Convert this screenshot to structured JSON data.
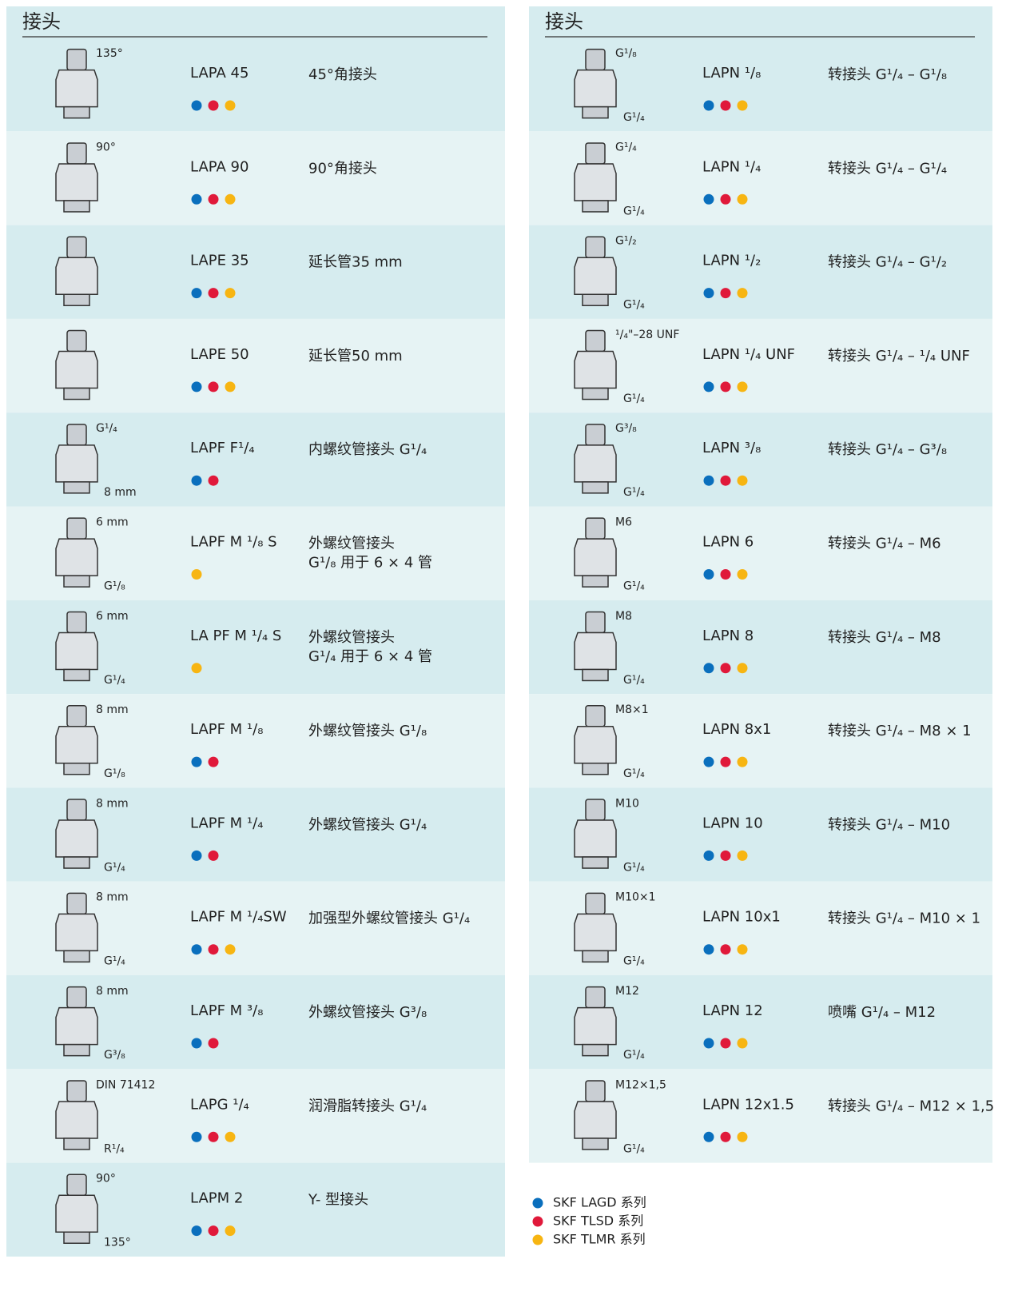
{
  "left": {
    "title": "接头",
    "rows": [
      {
        "name": "LAPA 45",
        "desc": [
          "45°角接头"
        ],
        "dims": [
          "135°"
        ],
        "systems": [
          0,
          1,
          2
        ]
      },
      {
        "name": "LAPA 90",
        "desc": [
          "90°角接头"
        ],
        "dims": [
          "90°"
        ],
        "systems": [
          0,
          1,
          2
        ]
      },
      {
        "name": "LAPE 35",
        "desc": [
          "延长管35 mm"
        ],
        "dims": [],
        "systems": [
          0,
          1,
          2
        ]
      },
      {
        "name": "LAPE 50",
        "desc": [
          "延长管50 mm"
        ],
        "dims": [],
        "systems": [
          0,
          1,
          2
        ]
      },
      {
        "name": "LAPF F¹/₄",
        "desc": [
          "内螺纹管接头 G¹/₄"
        ],
        "dims": [
          "G¹/₄",
          "8 mm"
        ],
        "systems": [
          0,
          1
        ]
      },
      {
        "name": "LAPF M ¹/₈ S",
        "desc": [
          "外螺纹管接头",
          "G¹/₈ 用于 6 × 4 管"
        ],
        "dims": [
          "6 mm",
          "G¹/₈"
        ],
        "systems": [
          2
        ]
      },
      {
        "name": "LA PF M ¹/₄ S",
        "desc": [
          "外螺纹管接头",
          "G¹/₄ 用于 6 × 4 管"
        ],
        "dims": [
          "6 mm",
          "G¹/₄"
        ],
        "systems": [
          2
        ]
      },
      {
        "name": "LAPF M ¹/₈",
        "desc": [
          "外螺纹管接头 G¹/₈"
        ],
        "dims": [
          "8 mm",
          "G¹/₈"
        ],
        "systems": [
          0,
          1
        ]
      },
      {
        "name": "LAPF M ¹/₄",
        "desc": [
          "外螺纹管接头 G¹/₄"
        ],
        "dims": [
          "8 mm",
          "G¹/₄"
        ],
        "systems": [
          0,
          1
        ]
      },
      {
        "name": "LAPF M ¹/₄SW",
        "desc": [
          "加强型外螺纹管接头 G¹/₄"
        ],
        "dims": [
          "8 mm",
          "G¹/₄"
        ],
        "systems": [
          0,
          1,
          2
        ]
      },
      {
        "name": "LAPF M ³/₈",
        "desc": [
          "外螺纹管接头 G³/₈"
        ],
        "dims": [
          "8 mm",
          "G³/₈"
        ],
        "systems": [
          0,
          1
        ]
      },
      {
        "name": "LAPG ¹/₄",
        "desc": [
          "润滑脂转接头 G¹/₄"
        ],
        "dims": [
          "DIN 71412",
          "R¹/₄"
        ],
        "systems": [
          0,
          1,
          2
        ]
      },
      {
        "name": "LAPM 2",
        "desc": [
          "Y- 型接头"
        ],
        "dims": [
          "90°",
          "135°"
        ],
        "systems": [
          0,
          1,
          2
        ]
      }
    ]
  },
  "right": {
    "title": "接头",
    "rows": [
      {
        "name": "LAPN ¹/₈",
        "desc": [
          "转接头 G¹/₄ – G¹/₈"
        ],
        "dims": [
          "G¹/₈",
          "G¹/₄"
        ],
        "systems": [
          0,
          1,
          2
        ]
      },
      {
        "name": "LAPN ¹/₄",
        "desc": [
          "转接头 G¹/₄ – G¹/₄"
        ],
        "dims": [
          "G¹/₄",
          "G¹/₄"
        ],
        "systems": [
          0,
          1,
          2
        ]
      },
      {
        "name": "LAPN ¹/₂",
        "desc": [
          "转接头 G¹/₄ – G¹/₂"
        ],
        "dims": [
          "G¹/₂",
          "G¹/₄"
        ],
        "systems": [
          0,
          1,
          2
        ]
      },
      {
        "name": "LAPN ¹/₄ UNF",
        "desc": [
          "转接头 G¹/₄ – ¹/₄ UNF"
        ],
        "dims": [
          "¹/₄\"–28 UNF",
          "G¹/₄"
        ],
        "systems": [
          0,
          1,
          2
        ]
      },
      {
        "name": "LAPN ³/₈",
        "desc": [
          "转接头 G¹/₄ – G³/₈"
        ],
        "dims": [
          "G³/₈",
          "G¹/₄"
        ],
        "systems": [
          0,
          1,
          2
        ]
      },
      {
        "name": "LAPN 6",
        "desc": [
          "转接头 G¹/₄ – M6"
        ],
        "dims": [
          "M6",
          "G¹/₄"
        ],
        "systems": [
          0,
          1,
          2
        ]
      },
      {
        "name": "LAPN 8",
        "desc": [
          "转接头 G¹/₄ – M8"
        ],
        "dims": [
          "M8",
          "G¹/₄"
        ],
        "systems": [
          0,
          1,
          2
        ]
      },
      {
        "name": "LAPN 8x1",
        "desc": [
          "转接头 G¹/₄ – M8 × 1"
        ],
        "dims": [
          "M8×1",
          "G¹/₄"
        ],
        "systems": [
          0,
          1,
          2
        ]
      },
      {
        "name": "LAPN 10",
        "desc": [
          "转接头 G¹/₄ – M10"
        ],
        "dims": [
          "M10",
          "G¹/₄"
        ],
        "systems": [
          0,
          1,
          2
        ]
      },
      {
        "name": "LAPN 10x1",
        "desc": [
          "转接头 G¹/₄ – M10 × 1"
        ],
        "dims": [
          "M10×1",
          "G¹/₄"
        ],
        "systems": [
          0,
          1,
          2
        ]
      },
      {
        "name": "LAPN 12",
        "desc": [
          "喷嘴 G¹/₄ – M12"
        ],
        "dims": [
          "M12",
          "G¹/₄"
        ],
        "systems": [
          0,
          1,
          2
        ]
      },
      {
        "name": "LAPN 12x1.5",
        "desc": [
          "转接头 G¹/₄ – M12 × 1,5"
        ],
        "dims": [
          "M12×1,5",
          "G¹/₄"
        ],
        "systems": [
          0,
          1,
          2
        ]
      }
    ]
  },
  "legend": [
    {
      "label": "SKF LAGD 系列",
      "color": "#0a6fbd"
    },
    {
      "label": "SKF TLSD 系列",
      "color": "#e0193a"
    },
    {
      "label": "SKF TLMR 系列",
      "color": "#f7b512"
    }
  ]
}
